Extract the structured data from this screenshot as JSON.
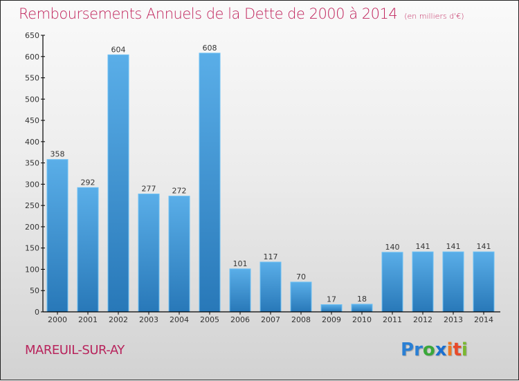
{
  "header": {
    "title": "Remboursements Annuels de la Dette de 2000 à 2014",
    "unit": "(en milliers d'€)"
  },
  "footer": {
    "city": "MAREUIL-SUR-AY",
    "logo_letters": [
      {
        "char": "P",
        "color": "#2a7fd4"
      },
      {
        "char": "r",
        "color": "#2a7fd4"
      },
      {
        "char": "o",
        "color": "#3aa83a"
      },
      {
        "char": "x",
        "color": "#1a6fd0"
      },
      {
        "char": "i",
        "color": "#f07820"
      },
      {
        "char": "t",
        "color": "#e84a2a"
      },
      {
        "char": "i",
        "color": "#7ab830"
      }
    ]
  },
  "colors": {
    "title": "#c0245c",
    "bar_top": "#5aaee8",
    "bar_bottom": "#2878b8",
    "axis": "#000000"
  },
  "chart_data": {
    "type": "bar",
    "title": "Remboursements Annuels de la Dette de 2000 à 2014",
    "subtitle": "(en milliers d'€)",
    "xlabel": "",
    "ylabel": "",
    "categories": [
      "2000",
      "2001",
      "2002",
      "2003",
      "2004",
      "2005",
      "2006",
      "2007",
      "2008",
      "2009",
      "2010",
      "2011",
      "2012",
      "2013",
      "2014"
    ],
    "values": [
      358,
      292,
      604,
      277,
      272,
      608,
      101,
      117,
      70,
      17,
      18,
      140,
      141,
      141,
      141
    ],
    "ylim": [
      0,
      650
    ],
    "yticks": [
      0,
      50,
      100,
      150,
      200,
      250,
      300,
      350,
      400,
      450,
      500,
      550,
      600,
      650
    ],
    "grid": false,
    "legend": "none"
  }
}
